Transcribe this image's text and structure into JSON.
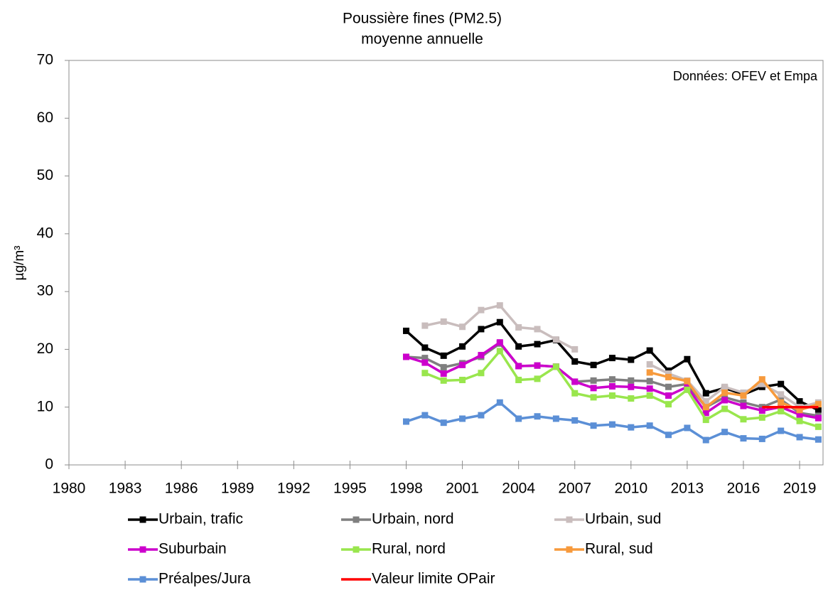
{
  "chart_data": {
    "type": "line",
    "title": "Poussière fines (PM2.5)",
    "subtitle": "moyenne annuelle",
    "y_label": "µg/m³",
    "annotation": "Données: OFEV et Empa",
    "x": [
      1998,
      1999,
      2000,
      2001,
      2002,
      2003,
      2004,
      2005,
      2006,
      2007,
      2008,
      2009,
      2010,
      2011,
      2012,
      2013,
      2014,
      2015,
      2016,
      2017,
      2018,
      2019,
      2020
    ],
    "xlim": [
      1980,
      2020.25
    ],
    "xticks": [
      1980,
      1983,
      1986,
      1989,
      1992,
      1995,
      1998,
      2001,
      2004,
      2007,
      2010,
      2013,
      2016,
      2019
    ],
    "ylim": [
      0,
      70
    ],
    "yticks": [
      0,
      10,
      20,
      30,
      40,
      50,
      60,
      70
    ],
    "series": [
      {
        "name": "Urbain, trafic",
        "color": "#000000",
        "marker": "square",
        "values": [
          23.2,
          20.3,
          18.9,
          20.5,
          23.5,
          24.7,
          20.5,
          20.9,
          21.6,
          17.9,
          17.3,
          18.5,
          18.2,
          19.8,
          16.3,
          18.3,
          12.4,
          13.3,
          12.2,
          13.5,
          14.0,
          11.0,
          9.5
        ]
      },
      {
        "name": "Urbain, nord",
        "color": "#7f7f7f",
        "marker": "square",
        "values": [
          18.7,
          18.5,
          16.9,
          17.6,
          18.7,
          21.0,
          17.1,
          17.2,
          17.0,
          14.4,
          14.6,
          14.8,
          14.6,
          14.5,
          13.5,
          14.0,
          10.0,
          11.7,
          10.8,
          10.0,
          11.3,
          9.0,
          8.5
        ]
      },
      {
        "name": "Urbain, sud",
        "color": "#c9bdbd",
        "marker": "square",
        "values": [
          null,
          24.1,
          24.8,
          23.9,
          26.8,
          27.6,
          23.8,
          23.5,
          21.7,
          20.0,
          null,
          null,
          null,
          17.4,
          15.8,
          14.6,
          11.0,
          13.5,
          12.5,
          14.0,
          12.2,
          10.0,
          10.8
        ]
      },
      {
        "name": "Suburbain",
        "color": "#cc00cc",
        "marker": "square",
        "values": [
          18.7,
          17.7,
          15.8,
          17.3,
          19.0,
          21.2,
          17.1,
          17.2,
          17.0,
          14.4,
          13.3,
          13.6,
          13.5,
          13.2,
          12.0,
          13.5,
          9.0,
          11.2,
          10.2,
          9.4,
          10.0,
          8.7,
          8.1
        ]
      },
      {
        "name": "Rural, nord",
        "color": "#99e64d",
        "marker": "square",
        "values": [
          null,
          15.9,
          14.6,
          14.7,
          15.9,
          19.7,
          14.7,
          14.9,
          17.0,
          12.4,
          11.7,
          12.0,
          11.5,
          12.0,
          10.5,
          13.0,
          7.8,
          9.7,
          7.9,
          8.2,
          9.3,
          7.6,
          6.6
        ]
      },
      {
        "name": "Rural, sud",
        "color": "#f79a3c",
        "marker": "square",
        "values": [
          null,
          null,
          null,
          null,
          null,
          null,
          null,
          null,
          null,
          null,
          null,
          null,
          null,
          16.0,
          15.2,
          14.5,
          10.0,
          12.5,
          12.0,
          14.8,
          10.8,
          9.5,
          10.5
        ]
      },
      {
        "name": "Préalpes/Jura",
        "color": "#5b8fd6",
        "marker": "square",
        "values": [
          7.5,
          8.6,
          7.3,
          8.0,
          8.6,
          10.8,
          8.0,
          8.4,
          8.0,
          7.7,
          6.8,
          7.0,
          6.5,
          6.8,
          5.2,
          6.4,
          4.3,
          5.7,
          4.6,
          4.5,
          5.9,
          4.8,
          4.4
        ]
      },
      {
        "name": "Valeur limite OPair",
        "color": "#ff0000",
        "marker": "none",
        "values": [
          null,
          null,
          null,
          null,
          null,
          null,
          null,
          null,
          null,
          null,
          null,
          null,
          null,
          null,
          null,
          null,
          null,
          null,
          null,
          10,
          10,
          10,
          10
        ]
      }
    ]
  }
}
